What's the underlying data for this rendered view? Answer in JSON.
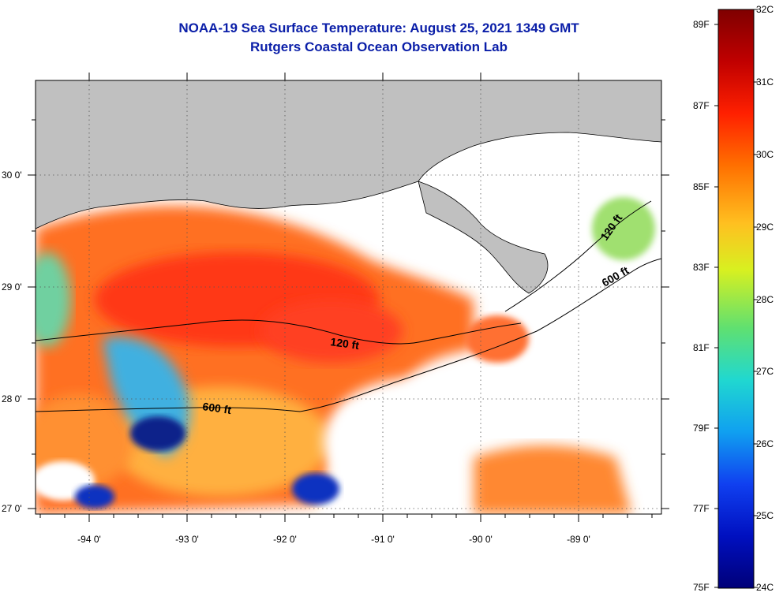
{
  "title": {
    "line1": "NOAA-19 Sea Surface Temperature:  August 25, 2021 1349 GMT",
    "line2": "Rutgers Coastal Ocean Observation Lab"
  },
  "axes": {
    "lat_labels": [
      "30 0'",
      "29 0'",
      "28 0'",
      "27 0'"
    ],
    "lon_labels": [
      "-94 0'",
      "-93 0'",
      "-92 0'",
      "-91 0'",
      "-90 0'",
      "-89 0'"
    ]
  },
  "contours": {
    "shelf_120": "120 ft",
    "shelf_600": "600 ft",
    "east_120": "120 ft",
    "east_600": "600 ft"
  },
  "colorbar": {
    "f_labels": [
      "89F",
      "87F",
      "85F",
      "83F",
      "81F",
      "79F",
      "77F",
      "75F"
    ],
    "c_labels": [
      "32C",
      "31C",
      "30C",
      "29C",
      "28C",
      "27C",
      "26C",
      "25C",
      "24C"
    ],
    "colors": [
      "#7f0000",
      "#c00000",
      "#ff2000",
      "#ff7000",
      "#ffc020",
      "#d8f020",
      "#60e070",
      "#20d8d0",
      "#10a0f0",
      "#1040f0",
      "#0010c0",
      "#000078"
    ]
  },
  "colors": {
    "land": "#c0c0c0",
    "title": "#0a1ea8"
  }
}
